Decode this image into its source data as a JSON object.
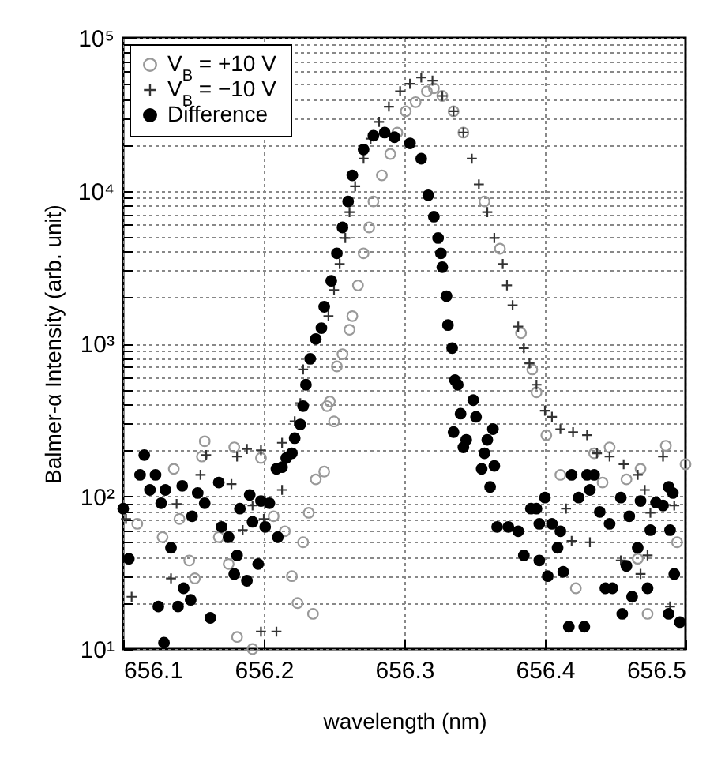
{
  "chart_data": {
    "type": "scatter",
    "xlabel": "wavelength (nm)",
    "ylabel": "Balmer-α Intensity (arb. unit)",
    "log": "y",
    "grid": true,
    "legend": "top left",
    "xlim": [
      656.1,
      656.5
    ],
    "xticks": [
      656.1,
      656.2,
      656.3,
      656.4,
      656.5
    ],
    "ylim": [
      10,
      100000
    ],
    "yticks": [
      {
        "value": 10,
        "label": "10¹"
      },
      {
        "value": 20,
        "label": null
      },
      {
        "value": 30,
        "label": null
      },
      {
        "value": 40,
        "label": null
      },
      {
        "value": 50,
        "label": null
      },
      {
        "value": 60,
        "label": null
      },
      {
        "value": 70,
        "label": null
      },
      {
        "value": 80,
        "label": null
      },
      {
        "value": 90,
        "label": null
      },
      {
        "value": 100,
        "label": "10²"
      },
      {
        "value": 200,
        "label": null
      },
      {
        "value": 300,
        "label": null
      },
      {
        "value": 400,
        "label": null
      },
      {
        "value": 500,
        "label": null
      },
      {
        "value": 600,
        "label": null
      },
      {
        "value": 700,
        "label": null
      },
      {
        "value": 800,
        "label": null
      },
      {
        "value": 900,
        "label": null
      },
      {
        "value": 1000,
        "label": "10³"
      },
      {
        "value": 2000,
        "label": null
      },
      {
        "value": 3000,
        "label": null
      },
      {
        "value": 4000,
        "label": null
      },
      {
        "value": 5000,
        "label": null
      },
      {
        "value": 6000,
        "label": null
      },
      {
        "value": 7000,
        "label": null
      },
      {
        "value": 8000,
        "label": null
      },
      {
        "value": 9000,
        "label": null
      },
      {
        "value": 10000,
        "label": "10⁴"
      },
      {
        "value": 20000,
        "label": null
      },
      {
        "value": 30000,
        "label": null
      },
      {
        "value": 40000,
        "label": null
      },
      {
        "value": 50000,
        "label": null
      },
      {
        "value": 60000,
        "label": null
      },
      {
        "value": 70000,
        "label": null
      },
      {
        "value": 80000,
        "label": null
      },
      {
        "value": 90000,
        "label": null
      },
      {
        "value": 100000,
        "label": "10⁵"
      }
    ],
    "series": [
      {
        "name": "V$_{B}$ = +10 V",
        "color": "#999999",
        "marker": "circle",
        "x": [
          656.11,
          656.136,
          656.158,
          656.156,
          656.179,
          656.14,
          656.128,
          656.151,
          656.147,
          656.168,
          656.175,
          656.181,
          656.192,
          656.198,
          656.207,
          656.215,
          656.22,
          656.224,
          656.235,
          656.228,
          656.232,
          656.237,
          656.243,
          656.25,
          656.245,
          656.247,
          656.252,
          656.256,
          656.261,
          656.263,
          656.267,
          656.271,
          656.275,
          656.278,
          656.284,
          656.29,
          656.295,
          656.301,
          656.308,
          656.316,
          656.321,
          656.327,
          656.335,
          656.342,
          656.357,
          656.368,
          656.383,
          656.391,
          656.394,
          656.401,
          656.411,
          656.422,
          656.435,
          656.446,
          656.458,
          656.468,
          656.486,
          656.5,
          656.494,
          656.466,
          656.473,
          656.441
        ],
        "values": [
          66,
          151,
          229,
          182,
          209,
          71,
          54,
          29,
          38,
          54,
          36,
          12,
          10,
          178,
          74,
          59,
          30,
          20,
          17,
          50,
          78,
          129,
          145,
          309,
          389,
          417,
          708,
          851,
          1230,
          1510,
          2400,
          3890,
          5750,
          8510,
          12600,
          17400,
          24000,
          33100,
          38000,
          44700,
          46800,
          41700,
          33100,
          24000,
          8510,
          4170,
          1170,
          676,
          479,
          251,
          138,
          25,
          191,
          209,
          129,
          151,
          214,
          162,
          50,
          39,
          17,
          123
        ]
      },
      {
        "name": "V$_{B}$ = −10 V",
        "color": "#333333",
        "marker": "cross",
        "x": [
          656.102,
          656.106,
          656.138,
          656.155,
          656.159,
          656.177,
          656.181,
          656.188,
          656.198,
          656.192,
          656.185,
          656.134,
          656.198,
          656.209,
          656.2,
          656.213,
          656.213,
          656.222,
          656.226,
          656.228,
          656.246,
          656.25,
          656.254,
          656.258,
          656.261,
          656.265,
          656.271,
          656.276,
          656.282,
          656.289,
          656.297,
          656.304,
          656.312,
          656.32,
          656.327,
          656.335,
          656.342,
          656.348,
          656.353,
          656.359,
          656.364,
          656.37,
          656.373,
          656.377,
          656.381,
          656.385,
          656.389,
          656.394,
          656.4,
          656.405,
          656.411,
          656.42,
          656.43,
          656.437,
          656.446,
          656.456,
          656.466,
          656.471,
          656.484,
          656.415,
          656.419,
          656.432,
          656.454,
          656.468,
          656.473,
          656.475,
          656.489,
          656.492
        ],
        "values": [
          71,
          22,
          89,
          138,
          186,
          120,
          182,
          204,
          200,
          87,
          60,
          29,
          13,
          13,
          71,
          110,
          224,
          309,
          407,
          676,
          1510,
          2240,
          3310,
          4900,
          7240,
          10700,
          16200,
          21900,
          28200,
          35500,
          44700,
          50100,
          55000,
          52500,
          41700,
          33100,
          24000,
          16200,
          11000,
          7240,
          4900,
          3310,
          2400,
          1780,
          1290,
          933,
          741,
          537,
          363,
          331,
          275,
          263,
          251,
          191,
          182,
          162,
          138,
          110,
          182,
          83,
          51,
          50,
          38,
          31,
          41,
          78,
          19,
          87
        ]
      },
      {
        "name": "Difference",
        "color": "#000000",
        "marker": "circle",
        "x": [
          656.1,
          656.104,
          656.115,
          656.112,
          656.123,
          656.119,
          656.127,
          656.13,
          656.134,
          656.143,
          656.139,
          656.125,
          656.129,
          656.142,
          656.149,
          656.153,
          656.158,
          656.162,
          656.148,
          656.168,
          656.17,
          656.175,
          656.179,
          656.181,
          656.183,
          656.188,
          656.19,
          656.192,
          656.196,
          656.198,
          656.201,
          656.204,
          656.21,
          656.209,
          656.213,
          656.216,
          656.22,
          656.222,
          656.226,
          656.228,
          656.23,
          656.233,
          656.237,
          656.241,
          656.243,
          656.248,
          656.252,
          656.256,
          656.26,
          656.263,
          656.271,
          656.278,
          656.286,
          656.293,
          656.304,
          656.312,
          656.317,
          656.321,
          656.324,
          656.326,
          656.327,
          656.33,
          656.331,
          656.334,
          656.336,
          656.338,
          656.349,
          656.34,
          656.351,
          656.335,
          656.344,
          656.363,
          656.359,
          656.342,
          656.357,
          656.355,
          656.364,
          656.361,
          656.366,
          656.374,
          656.381,
          656.39,
          656.394,
          656.396,
          656.4,
          656.405,
          656.411,
          656.385,
          656.396,
          656.402,
          656.413,
          656.409,
          656.417,
          656.428,
          656.419,
          656.424,
          656.43,
          656.435,
          656.432,
          656.439,
          656.446,
          656.443,
          656.448,
          656.454,
          656.46,
          656.466,
          656.458,
          656.462,
          656.455,
          656.468,
          656.473,
          656.475,
          656.479,
          656.484,
          656.488,
          656.491,
          656.489,
          656.492,
          656.488,
          656.496
        ],
        "values": [
          83,
          39,
          186,
          138,
          138,
          110,
          90,
          110,
          46,
          25,
          19,
          19,
          11,
          117,
          74,
          105,
          90,
          16,
          21,
          123,
          63,
          54,
          31,
          41,
          83,
          28,
          102,
          68,
          36,
          93,
          63,
          90,
          54,
          151,
          155,
          178,
          191,
          240,
          295,
          389,
          537,
          794,
          1070,
          1260,
          1740,
          2570,
          3890,
          5750,
          8510,
          12600,
          18600,
          22900,
          24000,
          22400,
          20400,
          16200,
          9330,
          6760,
          4900,
          3890,
          3160,
          2040,
          1320,
          933,
          575,
          537,
          426,
          347,
          331,
          263,
          234,
          275,
          234,
          209,
          191,
          151,
          158,
          115,
          63,
          63,
          59,
          83,
          83,
          66,
          98,
          66,
          59,
          41,
          38,
          30,
          32,
          46,
          14,
          14,
          138,
          98,
          138,
          138,
          110,
          79,
          66,
          25,
          25,
          98,
          74,
          46,
          35,
          22,
          17,
          93,
          25,
          60,
          91,
          87,
          115,
          105,
          60,
          31,
          17,
          15
        ]
      }
    ]
  }
}
